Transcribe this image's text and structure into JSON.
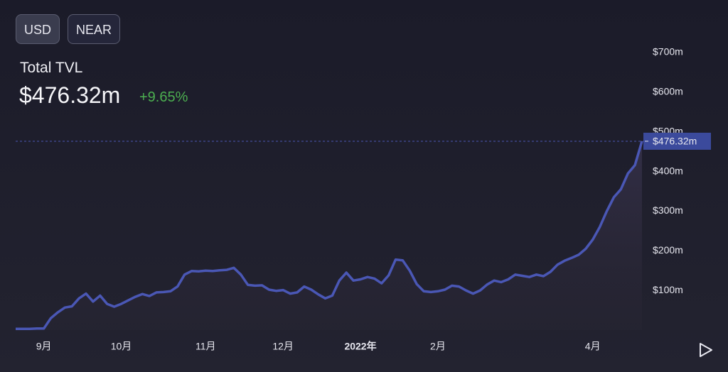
{
  "buttons": [
    "USD",
    "NEAR"
  ],
  "header": {
    "label": "Total TVL",
    "value": "$476.32m",
    "change": "+9.65%"
  },
  "chart_data": {
    "type": "line",
    "categories": [
      null,
      null,
      null,
      null,
      "9月",
      null,
      null,
      null,
      null,
      null,
      null,
      null,
      null,
      null,
      null,
      "10月",
      null,
      null,
      null,
      null,
      null,
      null,
      null,
      null,
      null,
      null,
      null,
      "11月",
      null,
      null,
      null,
      null,
      null,
      null,
      null,
      null,
      null,
      null,
      "12月",
      null,
      null,
      null,
      null,
      null,
      null,
      null,
      null,
      null,
      null,
      "2022年",
      null,
      null,
      null,
      null,
      null,
      null,
      null,
      null,
      null,
      null,
      "2月",
      null,
      null,
      null,
      null,
      null,
      null,
      null,
      null,
      null,
      null,
      null,
      null,
      null,
      null,
      null,
      null,
      null,
      null,
      null,
      null,
      null,
      "4月",
      null,
      null,
      null,
      null,
      null,
      null,
      null
    ],
    "series": [
      {
        "name": "Total TVL",
        "color": "#4a57b5",
        "values": [
          3,
          3,
          3,
          4,
          4,
          30,
          45,
          57,
          60,
          80,
          92,
          72,
          87,
          66,
          59,
          66,
          75,
          84,
          91,
          86,
          95,
          96,
          98,
          110,
          140,
          149,
          148,
          150,
          149,
          151,
          152,
          157,
          140,
          114,
          112,
          113,
          102,
          99,
          101,
          92,
          95,
          110,
          102,
          90,
          80,
          87,
          125,
          145,
          125,
          128,
          134,
          130,
          118,
          138,
          178,
          176,
          150,
          116,
          98,
          96,
          98,
          102,
          112,
          110,
          100,
          92,
          100,
          115,
          125,
          121,
          128,
          140,
          137,
          134,
          140,
          136,
          147,
          165,
          175,
          182,
          190,
          205,
          228,
          260,
          300,
          335,
          355,
          395,
          416,
          476.32
        ]
      }
    ],
    "current_label": "$476.32m",
    "ylim": [
      0,
      700
    ],
    "yticks": [
      {
        "value": 100,
        "label": "$100m"
      },
      {
        "value": 200,
        "label": "$200m"
      },
      {
        "value": 300,
        "label": "$300m"
      },
      {
        "value": 400,
        "label": "$400m"
      },
      {
        "value": 500,
        "label": "$500m"
      },
      {
        "value": 600,
        "label": "$600m"
      },
      {
        "value": 700,
        "label": "$700m"
      }
    ]
  }
}
